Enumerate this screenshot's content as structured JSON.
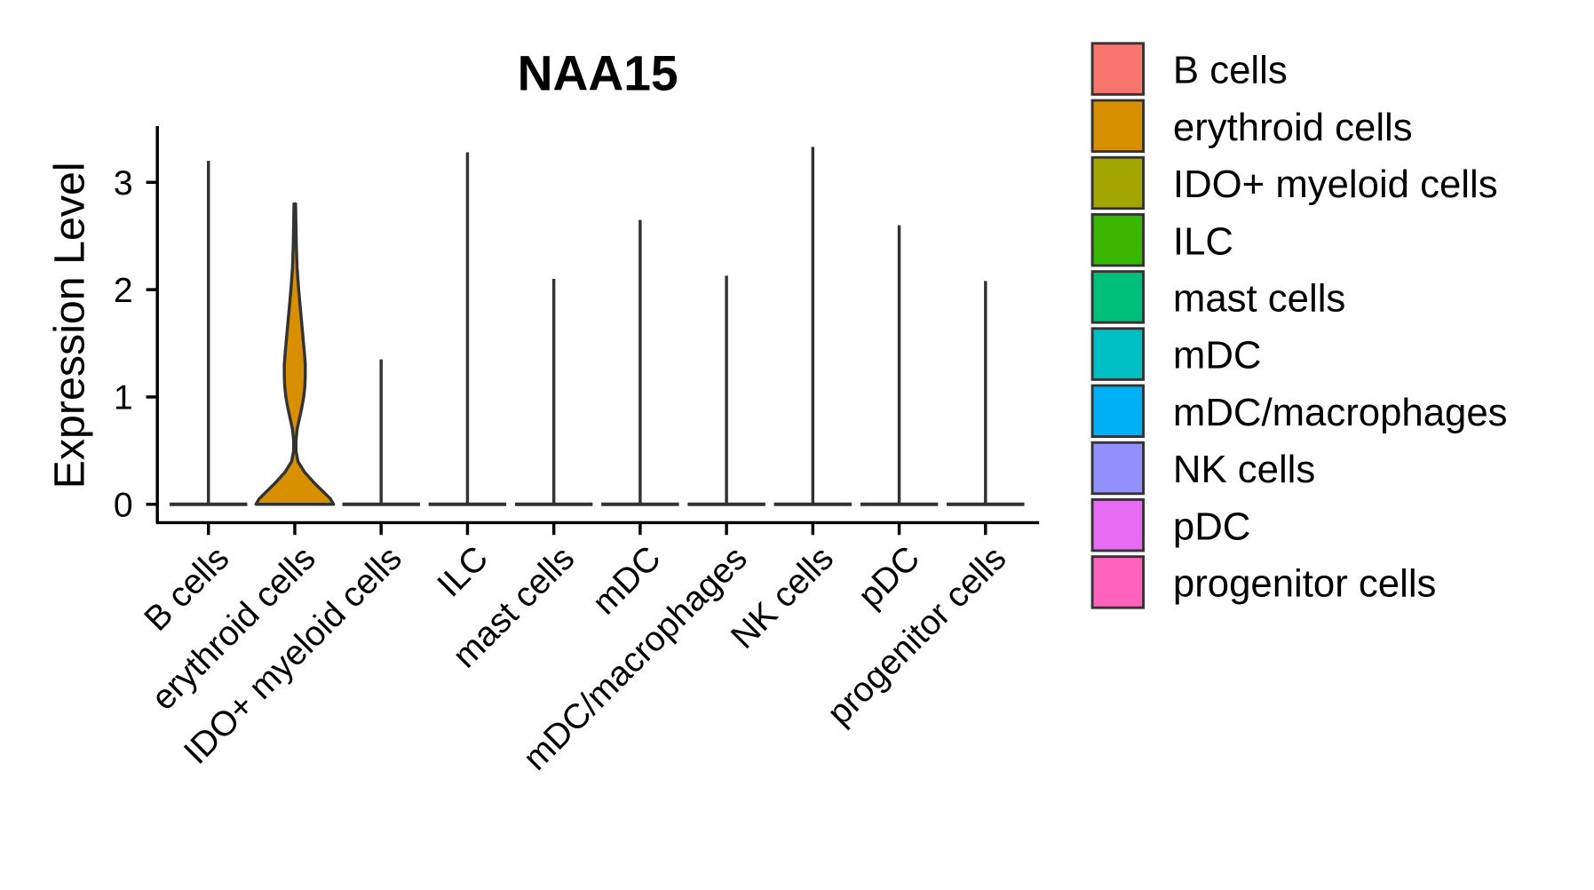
{
  "chart_data": {
    "type": "violin",
    "title": "NAA15",
    "xlabel": "",
    "ylabel": "Expression Level",
    "ylim": [
      -0.17,
      3.5
    ],
    "yticks": [
      0,
      1,
      2,
      3
    ],
    "ytick_labels": [
      "0",
      "1",
      "2",
      "3"
    ],
    "grid": false,
    "legend_position": "right",
    "categories": [
      "B cells",
      "erythroid cells",
      "IDO+ myeloid cells",
      "ILC",
      "mast cells",
      "mDC",
      "mDC/macrophages",
      "NK cells",
      "pDC",
      "progenitor cells"
    ],
    "colors": [
      "#F8766D",
      "#D89000",
      "#A3A500",
      "#39B600",
      "#00BF7D",
      "#00BFC4",
      "#00B0F6",
      "#9590FF",
      "#E76BF3",
      "#FF62BC"
    ],
    "max_values": [
      3.2,
      2.8,
      1.35,
      3.28,
      2.1,
      2.65,
      2.13,
      3.33,
      2.6,
      2.08
    ],
    "erythroid_density_profile": {
      "y": [
        0,
        0.05,
        0.1,
        0.2,
        0.3,
        0.4,
        0.5,
        0.6,
        0.7,
        0.8,
        0.9,
        1.0,
        1.1,
        1.2,
        1.3,
        1.4,
        1.6,
        1.8,
        2.0,
        2.2,
        2.4,
        2.6,
        2.8
      ],
      "relative_width": [
        1.0,
        0.92,
        0.78,
        0.5,
        0.25,
        0.08,
        0.03,
        0.03,
        0.06,
        0.12,
        0.18,
        0.23,
        0.26,
        0.27,
        0.27,
        0.25,
        0.2,
        0.15,
        0.1,
        0.06,
        0.04,
        0.03,
        0.02
      ]
    }
  }
}
